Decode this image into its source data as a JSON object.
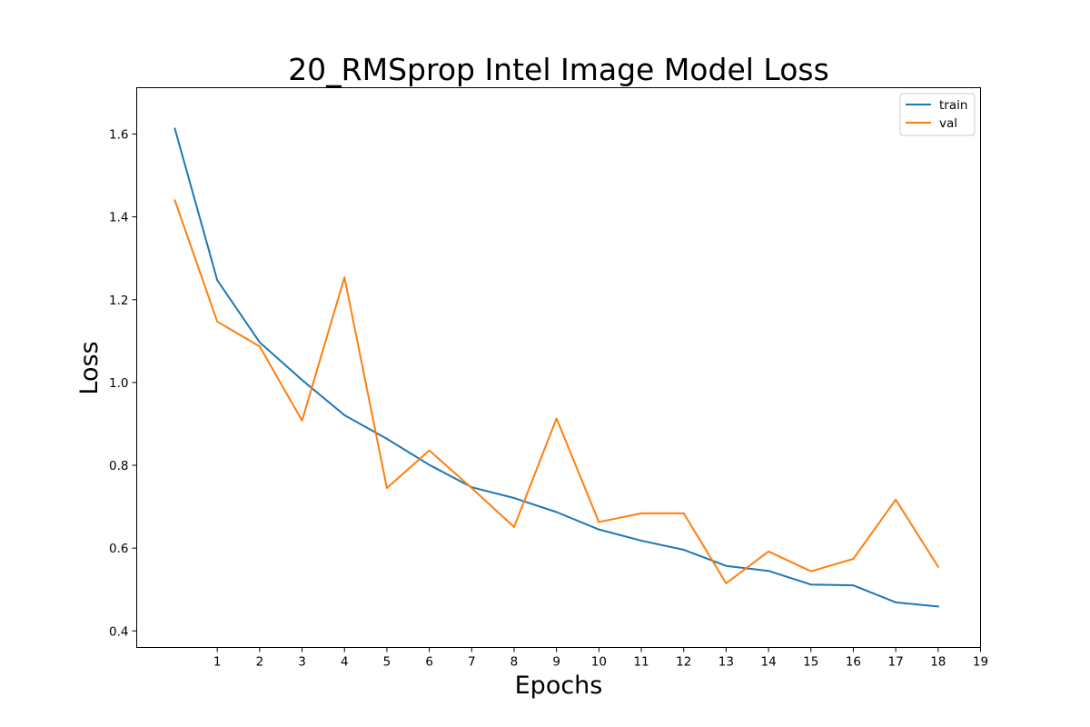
{
  "chart_data": {
    "type": "line",
    "title": "20_RMSprop Intel Image Model Loss",
    "xlabel": "Epochs",
    "ylabel": "Loss",
    "x": [
      0,
      1,
      2,
      3,
      4,
      5,
      6,
      7,
      8,
      9,
      10,
      11,
      12,
      13,
      14,
      15,
      16,
      17,
      18
    ],
    "xticks": [
      1,
      2,
      3,
      4,
      5,
      6,
      7,
      8,
      9,
      10,
      11,
      12,
      13,
      14,
      15,
      16,
      17,
      18,
      19
    ],
    "yticks": [
      0.4,
      0.6,
      0.8,
      1.0,
      1.2,
      1.4,
      1.6
    ],
    "xlim": [
      -0.9,
      19
    ],
    "ylim": [
      0.36,
      1.712
    ],
    "grid": false,
    "legend_position": "top-right",
    "series": [
      {
        "name": "train",
        "color": "#1f77b4",
        "values": [
          1.613,
          1.247,
          1.097,
          1.006,
          0.921,
          0.864,
          0.801,
          0.747,
          0.721,
          0.687,
          0.645,
          0.618,
          0.596,
          0.557,
          0.545,
          0.512,
          0.51,
          0.469,
          0.459
        ]
      },
      {
        "name": "val",
        "color": "#ff7f0e",
        "values": [
          1.44,
          1.147,
          1.087,
          0.908,
          1.254,
          0.745,
          0.836,
          0.745,
          0.651,
          0.913,
          0.663,
          0.684,
          0.684,
          0.515,
          0.592,
          0.544,
          0.574,
          0.717,
          0.555
        ]
      }
    ]
  }
}
